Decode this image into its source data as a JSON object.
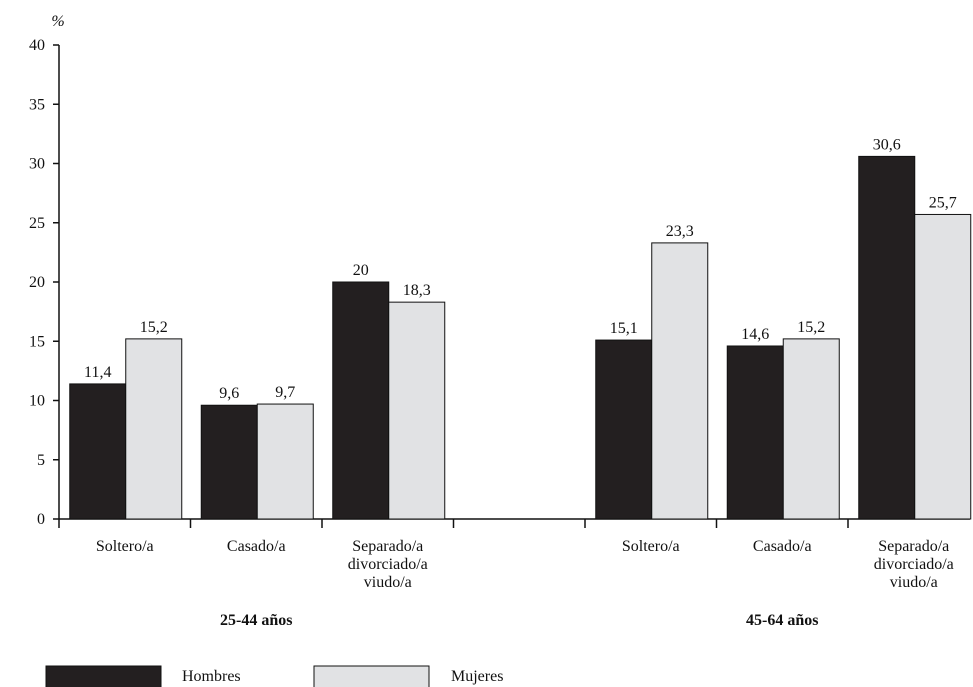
{
  "chart_data": {
    "type": "bar",
    "y_unit": "%",
    "ylim": [
      0,
      40
    ],
    "yticks": [
      0,
      5,
      10,
      15,
      20,
      25,
      30,
      35,
      40
    ],
    "grid": false,
    "legend_placement": "bottom-left",
    "groups": [
      {
        "label": "25-44 años",
        "categories": [
          {
            "lines": [
              "Soltero/a"
            ],
            "values": [
              11.4,
              15.2
            ],
            "labels": [
              "11,4",
              "15,2"
            ]
          },
          {
            "lines": [
              "Casado/a"
            ],
            "values": [
              9.6,
              9.7
            ],
            "labels": [
              "9,6",
              "9,7"
            ]
          },
          {
            "lines": [
              "Separado/a",
              "divorciado/a",
              "viudo/a"
            ],
            "values": [
              20,
              18.3
            ],
            "labels": [
              "20",
              "18,3"
            ]
          }
        ]
      },
      {
        "label": "45-64 años",
        "categories": [
          {
            "lines": [
              "Soltero/a"
            ],
            "values": [
              15.1,
              23.3
            ],
            "labels": [
              "15,1",
              "23,3"
            ]
          },
          {
            "lines": [
              "Casado/a"
            ],
            "values": [
              14.6,
              15.2
            ],
            "labels": [
              "14,6",
              "15,2"
            ]
          },
          {
            "lines": [
              "Separado/a",
              "divorciado/a",
              "viudo/a"
            ],
            "values": [
              30.6,
              25.7
            ],
            "labels": [
              "30,6",
              "25,7"
            ]
          }
        ]
      }
    ],
    "series": [
      {
        "name": "Hombres",
        "color": "#231f20"
      },
      {
        "name": "Mujeres",
        "color": "#e1e2e4"
      }
    ]
  }
}
